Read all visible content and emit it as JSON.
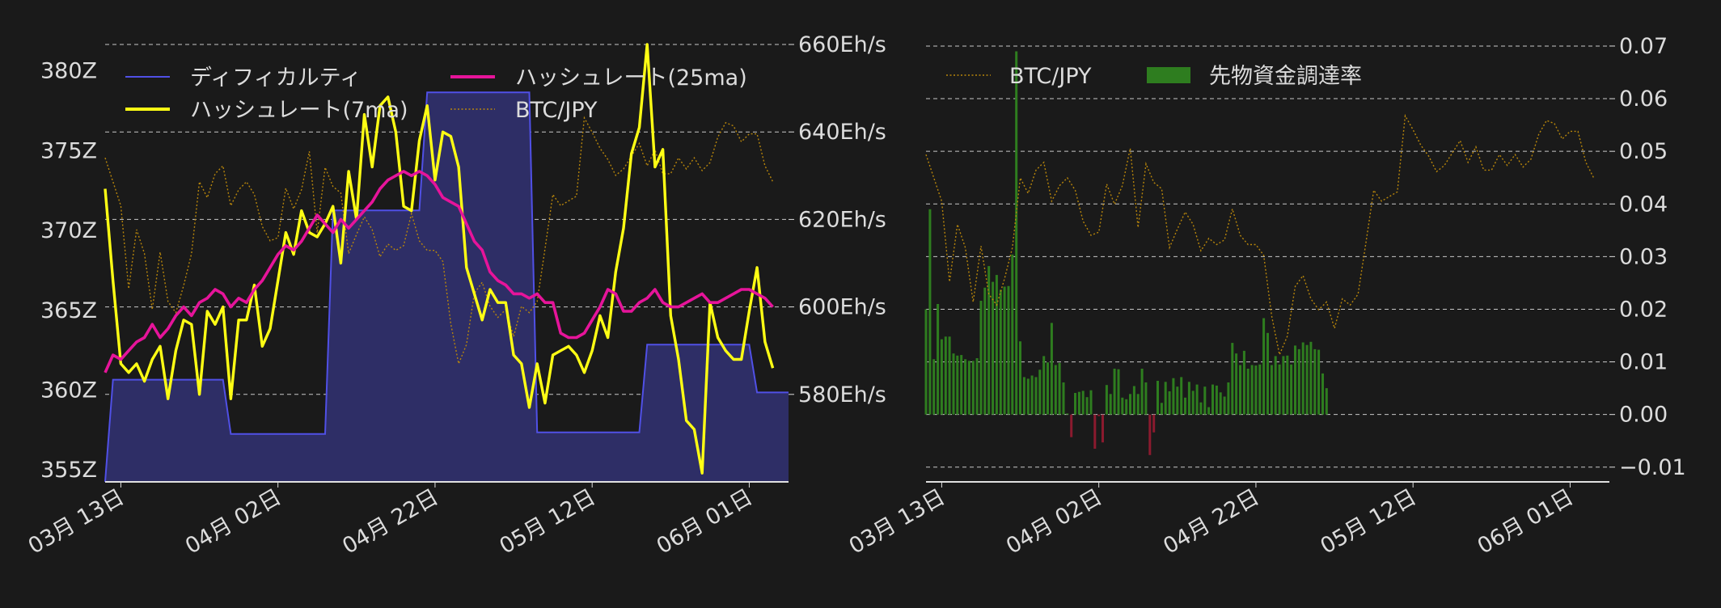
{
  "colors": {
    "background": "#1a1a1a",
    "text": "#dcdcdc",
    "grid": "#c8c8c8",
    "axis": "#e0e0e0",
    "difficulty_line": "#5050e6",
    "difficulty_fill": "#2e2e66",
    "hash7": "#ffff14",
    "hash25": "#e6149a",
    "btc": "#b8860b",
    "funding_pos": "#2e7d1f",
    "funding_neg": "#8b1a2e"
  },
  "chart_data": [
    {
      "type": "line",
      "x_axis": {
        "start": "2024-03-11",
        "end": "2024-06-06",
        "tick_dates": [
          "2024-03-13",
          "2024-04-02",
          "2024-04-22",
          "2024-05-12",
          "2024-06-01"
        ],
        "tick_labels": [
          "03月 13日",
          "04月 02日",
          "04月 22日",
          "05月 12日",
          "06月 01日"
        ]
      },
      "y_left": {
        "ylim": [
          354.2,
          381.6
        ],
        "ticks": [
          355,
          360,
          365,
          370,
          375,
          380
        ],
        "tick_labels": [
          "355Z",
          "360Z",
          "365Z",
          "370Z",
          "375Z",
          "380Z"
        ]
      },
      "y_right": {
        "ylim": [
          560,
          660
        ],
        "ticks": [
          580,
          600,
          620,
          640,
          660
        ],
        "tick_labels": [
          "580Eh/s",
          "600Eh/s",
          "620Eh/s",
          "640Eh/s",
          "660Eh/s"
        ]
      },
      "legend": {
        "placement": "top",
        "items": [
          {
            "key": "difficulty",
            "label": "ディフィカルティ"
          },
          {
            "key": "hash25",
            "label": "ハッシュレート(25ma)"
          },
          {
            "key": "hash7",
            "label": "ハッシュレート(7ma)"
          },
          {
            "key": "btc",
            "label": "BTC/JPY"
          }
        ]
      },
      "difficulty": {
        "axis": "left",
        "x": [
          "2024-03-11",
          "2024-03-12",
          "2024-03-26",
          "2024-03-27",
          "2024-04-08",
          "2024-04-09",
          "2024-04-20",
          "2024-04-21",
          "2024-05-04",
          "2024-05-05",
          "2024-05-18",
          "2024-05-19",
          "2024-06-01",
          "2024-06-02",
          "2024-06-06"
        ],
        "y": [
          354.2,
          360.6,
          360.6,
          357.2,
          357.2,
          371.2,
          371.2,
          378.6,
          378.6,
          357.3,
          357.3,
          362.8,
          362.8,
          359.8,
          359.8
        ]
      },
      "hash7": {
        "axis": "right",
        "x_start": "2024-03-11",
        "y": [
          627,
          603,
          590,
          583,
          589,
          580,
          591,
          589,
          581,
          587,
          600,
          594,
          582,
          596,
          599,
          598,
          581,
          594,
          600,
          603,
          593,
          592,
          609,
          615,
          614,
          619,
          620,
          614,
          621,
          620,
          613,
          629,
          622,
          641,
          635,
          644,
          650,
          637,
          626,
          620,
          640,
          643,
          632,
          638,
          641,
          629,
          612,
          601,
          599,
          601,
          604,
          599,
          591,
          584,
          580,
          585,
          580,
          586,
          593,
          589,
          591,
          582,
          593,
          596,
          595,
          605,
          621,
          633,
          643,
          657,
          635,
          634,
          600,
          585,
          577,
          570,
          564,
          598,
          596,
          588,
          590,
          585,
          602,
          607,
          594,
          586
        ],
        "wiggle": [
          0,
          3,
          -3,
          2,
          -2,
          3,
          -3,
          2,
          -2,
          3,
          -3,
          2,
          -2,
          3,
          -3,
          2,
          -2,
          3,
          -3,
          2,
          -2,
          3,
          -3,
          2,
          -2,
          3,
          -3,
          2,
          -2,
          3,
          -3,
          2,
          -2,
          3,
          -3,
          2,
          -2,
          3,
          -3,
          2,
          -2,
          3,
          -3,
          2,
          -2,
          3,
          -3,
          2,
          -2,
          3,
          -3,
          2,
          -2,
          3,
          -3,
          2,
          -2,
          3,
          -3,
          2,
          -2,
          3,
          -3,
          2,
          -2,
          3,
          -3,
          2,
          -2,
          3,
          -3,
          2,
          -2,
          3,
          -3,
          2,
          -2,
          3,
          -3,
          2,
          -2,
          3,
          -3,
          2,
          -2,
          0
        ]
      },
      "hash25": {
        "axis": "right",
        "x_start": "2024-03-11",
        "y": [
          585,
          589,
          588,
          590,
          592,
          593,
          596,
          593,
          595,
          598,
          600,
          598,
          601,
          602,
          604,
          603,
          600,
          602,
          601,
          604,
          606,
          609,
          612,
          614,
          613,
          615,
          618,
          621,
          619,
          617,
          620,
          618,
          620,
          622,
          624,
          627,
          629,
          630,
          631,
          630,
          631,
          630,
          628,
          625,
          624,
          623,
          619,
          615,
          613,
          608,
          606,
          605,
          603,
          603,
          602,
          603,
          601,
          601,
          594,
          593,
          593,
          594,
          597,
          600,
          604,
          603,
          599,
          599,
          601,
          602,
          604,
          601,
          600,
          600,
          601,
          602,
          603,
          601,
          601,
          602,
          603,
          604,
          604,
          603,
          602,
          600
        ],
        "wiggle": []
      },
      "btc": {
        "axis": "left",
        "x_start": "2024-03-11",
        "y": [
          374.5,
          373.0,
          371.5,
          366.3,
          370.0,
          368.5,
          365.0,
          368.6,
          365.5,
          364.8,
          366.5,
          368.5,
          373.0,
          372.0,
          373.5,
          374.0,
          371.5,
          372.5,
          373.0,
          372.2,
          370.2,
          369.3,
          369.5,
          372.6,
          371.3,
          372.5,
          374.9,
          369.8,
          373.9,
          372.7,
          372.3,
          368.5,
          369.7,
          370.8,
          370.0,
          368.3,
          369.1,
          368.7,
          369.0,
          371.0,
          369.3,
          368.7,
          368.7,
          368.0,
          364.1,
          361.6,
          362.8,
          366.0,
          366.7,
          365.2,
          364.5,
          365.0,
          363.3,
          365.2,
          364.8,
          365.5,
          368.8,
          372.2,
          371.5,
          371.8,
          372.1,
          377.0,
          376.1,
          375.1,
          374.4,
          373.4,
          373.8,
          374.6,
          375.4,
          374.0,
          375.0,
          373.5,
          373.5,
          374.5,
          373.8,
          374.5,
          373.7,
          374.2,
          375.8,
          376.7,
          376.5,
          375.5,
          376.0,
          376.0,
          374.0,
          373.0
        ],
        "wiggle": []
      }
    },
    {
      "type": "bar",
      "x_axis": {
        "start": "2024-03-11",
        "end": "2024-06-06",
        "tick_dates": [
          "2024-03-13",
          "2024-04-02",
          "2024-04-22",
          "2024-05-12",
          "2024-06-01"
        ],
        "tick_labels": [
          "03月 13日",
          "04月 02日",
          "04月 22日",
          "05月 12日",
          "06月 01日"
        ]
      },
      "y_right": {
        "ylim": [
          -0.0128,
          0.0703
        ],
        "ticks": [
          -0.01,
          0.0,
          0.01,
          0.02,
          0.03,
          0.04,
          0.05,
          0.06,
          0.07
        ],
        "tick_labels": [
          "−0.01",
          "0.00",
          "0.01",
          "0.02",
          "0.03",
          "0.04",
          "0.05",
          "0.06",
          "0.07"
        ]
      },
      "legend": {
        "placement": "top-left",
        "items": [
          {
            "key": "btc",
            "label": "BTC/JPY"
          },
          {
            "key": "funding",
            "label": "先物資金調達率"
          }
        ]
      },
      "funding": {
        "x_start": "2024-03-11",
        "step_days": 0.5,
        "values": [
          0.02,
          0.039,
          0.0105,
          0.021,
          0.0143,
          0.0148,
          0.0148,
          0.0116,
          0.0112,
          0.0113,
          0.0105,
          0.0102,
          0.0102,
          0.0107,
          0.0216,
          0.0241,
          0.0282,
          0.0252,
          0.0265,
          0.0237,
          0.0243,
          0.0244,
          0.0304,
          0.069,
          0.0139,
          0.0071,
          0.0068,
          0.0074,
          0.0071,
          0.0085,
          0.0111,
          0.0099,
          0.0174,
          0.0094,
          0.0098,
          0.0061,
          0.0002,
          -0.0043,
          0.0041,
          0.0043,
          0.0045,
          0.0033,
          0.0046,
          -0.0065,
          -0.0003,
          -0.0053,
          0.0056,
          0.0039,
          0.0087,
          0.0086,
          0.0032,
          0.0029,
          0.0039,
          0.0054,
          0.0039,
          0.0087,
          0.0061,
          -0.0077,
          -0.0034,
          0.0064,
          0.0022,
          0.0062,
          0.0044,
          0.0069,
          0.0053,
          0.0071,
          0.0032,
          0.0062,
          0.0045,
          0.0057,
          0.0023,
          0.0053,
          0.0014,
          0.0057,
          0.0055,
          0.0042,
          0.0034,
          0.0061,
          0.0136,
          0.0116,
          0.0094,
          0.0121,
          0.0087,
          0.0094,
          0.0093,
          0.0095,
          0.0183,
          0.0155,
          0.0094,
          0.0111,
          0.0095,
          0.0111,
          0.0112,
          0.0095,
          0.0131,
          0.0124,
          0.0137,
          0.0132,
          0.0138,
          0.0124,
          0.0123,
          0.0078,
          0.005
        ]
      },
      "btc_secondary": {
        "ylim": [
          353.4,
          381.6
        ]
      }
    }
  ]
}
